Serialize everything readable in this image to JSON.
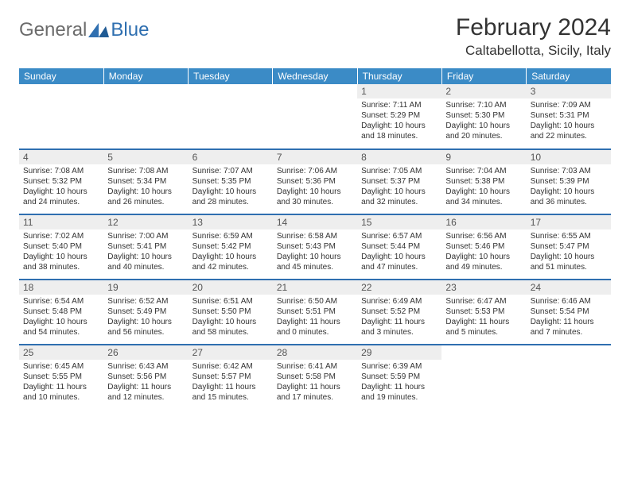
{
  "logo": {
    "general": "General",
    "blue": "Blue"
  },
  "title": "February 2024",
  "location": "Caltabellotta, Sicily, Italy",
  "colors": {
    "header_bg": "#3b8bc6",
    "rule": "#2f6fb0",
    "daynum_bg": "#eeeeee",
    "text": "#333333",
    "logo_grey": "#6b6b6b",
    "logo_blue": "#2f6fb0"
  },
  "day_headers": [
    "Sunday",
    "Monday",
    "Tuesday",
    "Wednesday",
    "Thursday",
    "Friday",
    "Saturday"
  ],
  "weeks": [
    [
      {
        "n": "",
        "blank": true
      },
      {
        "n": "",
        "blank": true
      },
      {
        "n": "",
        "blank": true
      },
      {
        "n": "",
        "blank": true
      },
      {
        "n": "1",
        "sr": "Sunrise: 7:11 AM",
        "ss": "Sunset: 5:29 PM",
        "d1": "Daylight: 10 hours",
        "d2": "and 18 minutes."
      },
      {
        "n": "2",
        "sr": "Sunrise: 7:10 AM",
        "ss": "Sunset: 5:30 PM",
        "d1": "Daylight: 10 hours",
        "d2": "and 20 minutes."
      },
      {
        "n": "3",
        "sr": "Sunrise: 7:09 AM",
        "ss": "Sunset: 5:31 PM",
        "d1": "Daylight: 10 hours",
        "d2": "and 22 minutes."
      }
    ],
    [
      {
        "n": "4",
        "sr": "Sunrise: 7:08 AM",
        "ss": "Sunset: 5:32 PM",
        "d1": "Daylight: 10 hours",
        "d2": "and 24 minutes."
      },
      {
        "n": "5",
        "sr": "Sunrise: 7:08 AM",
        "ss": "Sunset: 5:34 PM",
        "d1": "Daylight: 10 hours",
        "d2": "and 26 minutes."
      },
      {
        "n": "6",
        "sr": "Sunrise: 7:07 AM",
        "ss": "Sunset: 5:35 PM",
        "d1": "Daylight: 10 hours",
        "d2": "and 28 minutes."
      },
      {
        "n": "7",
        "sr": "Sunrise: 7:06 AM",
        "ss": "Sunset: 5:36 PM",
        "d1": "Daylight: 10 hours",
        "d2": "and 30 minutes."
      },
      {
        "n": "8",
        "sr": "Sunrise: 7:05 AM",
        "ss": "Sunset: 5:37 PM",
        "d1": "Daylight: 10 hours",
        "d2": "and 32 minutes."
      },
      {
        "n": "9",
        "sr": "Sunrise: 7:04 AM",
        "ss": "Sunset: 5:38 PM",
        "d1": "Daylight: 10 hours",
        "d2": "and 34 minutes."
      },
      {
        "n": "10",
        "sr": "Sunrise: 7:03 AM",
        "ss": "Sunset: 5:39 PM",
        "d1": "Daylight: 10 hours",
        "d2": "and 36 minutes."
      }
    ],
    [
      {
        "n": "11",
        "sr": "Sunrise: 7:02 AM",
        "ss": "Sunset: 5:40 PM",
        "d1": "Daylight: 10 hours",
        "d2": "and 38 minutes."
      },
      {
        "n": "12",
        "sr": "Sunrise: 7:00 AM",
        "ss": "Sunset: 5:41 PM",
        "d1": "Daylight: 10 hours",
        "d2": "and 40 minutes."
      },
      {
        "n": "13",
        "sr": "Sunrise: 6:59 AM",
        "ss": "Sunset: 5:42 PM",
        "d1": "Daylight: 10 hours",
        "d2": "and 42 minutes."
      },
      {
        "n": "14",
        "sr": "Sunrise: 6:58 AM",
        "ss": "Sunset: 5:43 PM",
        "d1": "Daylight: 10 hours",
        "d2": "and 45 minutes."
      },
      {
        "n": "15",
        "sr": "Sunrise: 6:57 AM",
        "ss": "Sunset: 5:44 PM",
        "d1": "Daylight: 10 hours",
        "d2": "and 47 minutes."
      },
      {
        "n": "16",
        "sr": "Sunrise: 6:56 AM",
        "ss": "Sunset: 5:46 PM",
        "d1": "Daylight: 10 hours",
        "d2": "and 49 minutes."
      },
      {
        "n": "17",
        "sr": "Sunrise: 6:55 AM",
        "ss": "Sunset: 5:47 PM",
        "d1": "Daylight: 10 hours",
        "d2": "and 51 minutes."
      }
    ],
    [
      {
        "n": "18",
        "sr": "Sunrise: 6:54 AM",
        "ss": "Sunset: 5:48 PM",
        "d1": "Daylight: 10 hours",
        "d2": "and 54 minutes."
      },
      {
        "n": "19",
        "sr": "Sunrise: 6:52 AM",
        "ss": "Sunset: 5:49 PM",
        "d1": "Daylight: 10 hours",
        "d2": "and 56 minutes."
      },
      {
        "n": "20",
        "sr": "Sunrise: 6:51 AM",
        "ss": "Sunset: 5:50 PM",
        "d1": "Daylight: 10 hours",
        "d2": "and 58 minutes."
      },
      {
        "n": "21",
        "sr": "Sunrise: 6:50 AM",
        "ss": "Sunset: 5:51 PM",
        "d1": "Daylight: 11 hours",
        "d2": "and 0 minutes."
      },
      {
        "n": "22",
        "sr": "Sunrise: 6:49 AM",
        "ss": "Sunset: 5:52 PM",
        "d1": "Daylight: 11 hours",
        "d2": "and 3 minutes."
      },
      {
        "n": "23",
        "sr": "Sunrise: 6:47 AM",
        "ss": "Sunset: 5:53 PM",
        "d1": "Daylight: 11 hours",
        "d2": "and 5 minutes."
      },
      {
        "n": "24",
        "sr": "Sunrise: 6:46 AM",
        "ss": "Sunset: 5:54 PM",
        "d1": "Daylight: 11 hours",
        "d2": "and 7 minutes."
      }
    ],
    [
      {
        "n": "25",
        "sr": "Sunrise: 6:45 AM",
        "ss": "Sunset: 5:55 PM",
        "d1": "Daylight: 11 hours",
        "d2": "and 10 minutes."
      },
      {
        "n": "26",
        "sr": "Sunrise: 6:43 AM",
        "ss": "Sunset: 5:56 PM",
        "d1": "Daylight: 11 hours",
        "d2": "and 12 minutes."
      },
      {
        "n": "27",
        "sr": "Sunrise: 6:42 AM",
        "ss": "Sunset: 5:57 PM",
        "d1": "Daylight: 11 hours",
        "d2": "and 15 minutes."
      },
      {
        "n": "28",
        "sr": "Sunrise: 6:41 AM",
        "ss": "Sunset: 5:58 PM",
        "d1": "Daylight: 11 hours",
        "d2": "and 17 minutes."
      },
      {
        "n": "29",
        "sr": "Sunrise: 6:39 AM",
        "ss": "Sunset: 5:59 PM",
        "d1": "Daylight: 11 hours",
        "d2": "and 19 minutes."
      },
      {
        "n": "",
        "blank": true
      },
      {
        "n": "",
        "blank": true
      }
    ]
  ]
}
